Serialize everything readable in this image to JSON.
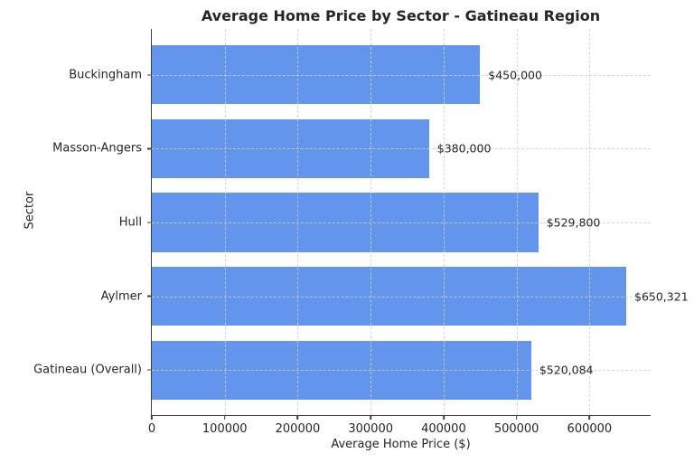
{
  "chart_data": {
    "type": "bar",
    "orientation": "horizontal",
    "title": "Average Home Price by Sector - Gatineau Region",
    "xlabel": "Average Home Price ($)",
    "ylabel": "Sector",
    "categories": [
      "Buckingham",
      "Masson-Angers",
      "Hull",
      "Aylmer",
      "Gatineau (Overall)"
    ],
    "values": [
      450000,
      380000,
      529800,
      650321,
      520084
    ],
    "value_labels": [
      "$450,000",
      "$380,000",
      "$529,800",
      "$650,321",
      "$520,084"
    ],
    "x_ticks": [
      0,
      100000,
      200000,
      300000,
      400000,
      500000,
      600000
    ],
    "x_tick_labels": [
      "0",
      "100000",
      "200000",
      "300000",
      "400000",
      "500000",
      "600000"
    ],
    "xlim": [
      0,
      685000
    ],
    "grid": true,
    "grid_style": "dashed",
    "legend": "none",
    "colors": {
      "bar": "#6495ED",
      "grid": "#cfcfcf",
      "spine": "#404040",
      "text": "#262626",
      "background": "#ffffff"
    }
  }
}
